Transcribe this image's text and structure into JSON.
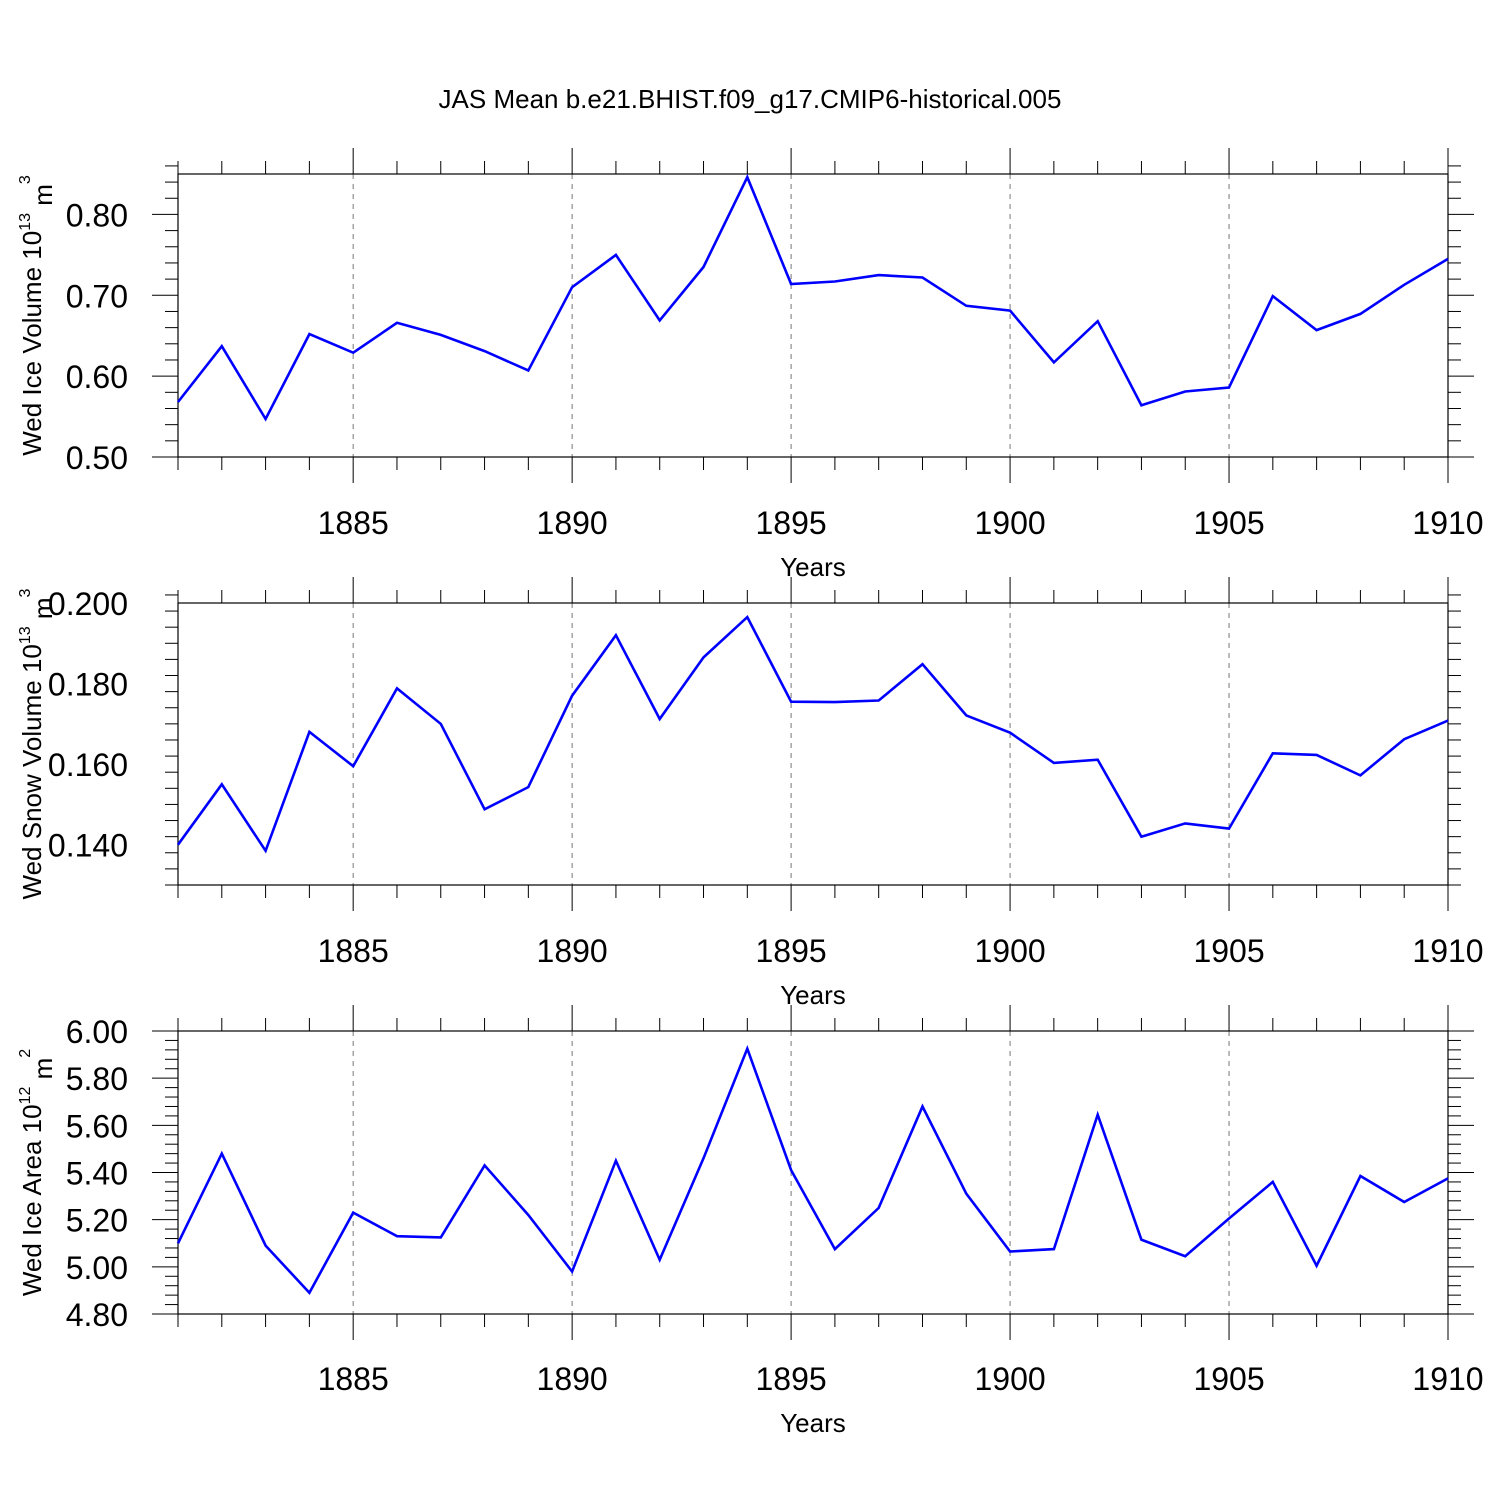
{
  "title": "JAS Mean b.e21.BHIST.f09_g17.CMIP6-historical.005",
  "line_color": "#0000ff",
  "chart_data": [
    {
      "type": "line",
      "ylabel_main": "Wed Ice Volume 10",
      "ylabel_exp": "13",
      "ylabel_unit": " m",
      "ylabel_unit_exp": "3",
      "xlabel": "Years",
      "xlim": [
        1881,
        1910
      ],
      "ylim": [
        0.5,
        0.85
      ],
      "xticks": [
        "1885",
        "1890",
        "1895",
        "1900",
        "1905",
        "1910"
      ],
      "yticks": [
        "0.50",
        "0.60",
        "0.70",
        "0.80"
      ],
      "series": [
        {
          "x": [
            1881,
            1882,
            1883,
            1884,
            1885,
            1886,
            1887,
            1888,
            1889,
            1890,
            1891,
            1892,
            1893,
            1894,
            1895,
            1896,
            1897,
            1898,
            1899,
            1900,
            1901,
            1902,
            1903,
            1904,
            1905,
            1906,
            1907,
            1908,
            1909,
            1910
          ],
          "values": [
            0.568,
            0.637,
            0.547,
            0.652,
            0.629,
            0.666,
            0.651,
            0.631,
            0.607,
            0.71,
            0.75,
            0.669,
            0.735,
            0.846,
            0.714,
            0.717,
            0.725,
            0.722,
            0.687,
            0.681,
            0.617,
            0.668,
            0.564,
            0.581,
            0.586,
            0.699,
            0.657,
            0.677,
            0.713,
            0.745
          ]
        }
      ]
    },
    {
      "type": "line",
      "ylabel_main": "Wed Snow Volume 10",
      "ylabel_exp": "13",
      "ylabel_unit": " m",
      "ylabel_unit_exp": "3",
      "xlabel": "Years",
      "xlim": [
        1881,
        1910
      ],
      "ylim": [
        0.13,
        0.2
      ],
      "xticks": [
        "1885",
        "1890",
        "1895",
        "1900",
        "1905",
        "1910"
      ],
      "yticks": [
        "0.140",
        "0.160",
        "0.180",
        "0.200"
      ],
      "series": [
        {
          "x": [
            1881,
            1882,
            1883,
            1884,
            1885,
            1886,
            1887,
            1888,
            1889,
            1890,
            1891,
            1892,
            1893,
            1894,
            1895,
            1896,
            1897,
            1898,
            1899,
            1900,
            1901,
            1902,
            1903,
            1904,
            1905,
            1906,
            1907,
            1908,
            1909,
            1910
          ],
          "values": [
            0.14,
            0.155,
            0.1385,
            0.168,
            0.1595,
            0.1788,
            0.17,
            0.1488,
            0.1543,
            0.177,
            0.192,
            0.1712,
            0.1865,
            0.1965,
            0.1755,
            0.1754,
            0.1758,
            0.1848,
            0.1721,
            0.1678,
            0.1603,
            0.1611,
            0.142,
            0.1453,
            0.144,
            0.1627,
            0.1623,
            0.1572,
            0.1662,
            0.1708
          ]
        }
      ]
    },
    {
      "type": "line",
      "ylabel_main": "Wed Ice Area 10",
      "ylabel_exp": "12",
      "ylabel_unit": " m",
      "ylabel_unit_exp": "2",
      "xlabel": "Years",
      "xlim": [
        1881,
        1910
      ],
      "ylim": [
        4.8,
        6.0
      ],
      "xticks": [
        "1885",
        "1890",
        "1895",
        "1900",
        "1905",
        "1910"
      ],
      "yticks": [
        "4.80",
        "5.00",
        "5.20",
        "5.40",
        "5.60",
        "5.80",
        "6.00"
      ],
      "series": [
        {
          "x": [
            1881,
            1882,
            1883,
            1884,
            1885,
            1886,
            1887,
            1888,
            1889,
            1890,
            1891,
            1892,
            1893,
            1894,
            1895,
            1896,
            1897,
            1898,
            1899,
            1900,
            1901,
            1902,
            1903,
            1904,
            1905,
            1906,
            1907,
            1908,
            1909,
            1910
          ],
          "values": [
            5.1,
            5.48,
            5.09,
            4.89,
            5.23,
            5.13,
            5.125,
            5.43,
            5.22,
            4.98,
            5.45,
            5.03,
            5.46,
            5.925,
            5.41,
            5.075,
            5.25,
            5.68,
            5.31,
            5.065,
            5.075,
            5.645,
            5.115,
            5.045,
            5.205,
            5.36,
            5.005,
            5.385,
            5.275,
            5.375
          ]
        }
      ]
    }
  ]
}
